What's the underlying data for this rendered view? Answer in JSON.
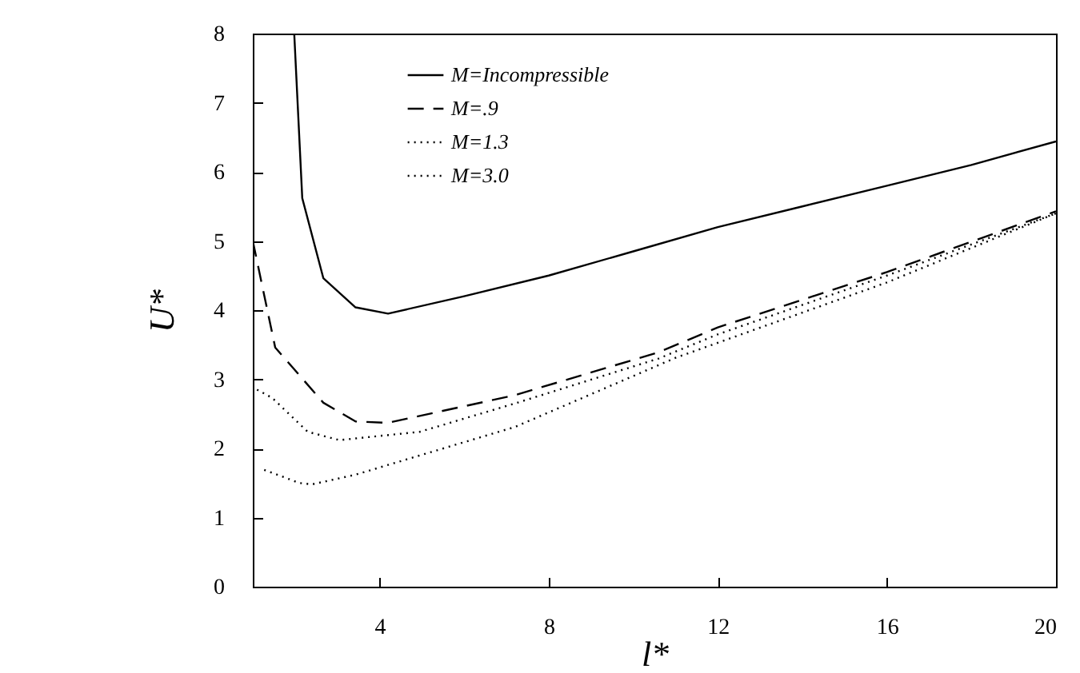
{
  "chart_data": {
    "type": "line",
    "xlabel": "l*",
    "ylabel": "U*",
    "xlim": [
      1,
      20
    ],
    "ylim": [
      0,
      8
    ],
    "xticks": [
      4,
      8,
      12,
      16,
      20
    ],
    "yticks": [
      0,
      1,
      2,
      3,
      4,
      5,
      6,
      7,
      8
    ],
    "grid": false,
    "legend": "top left",
    "marker": "none",
    "series": [
      {
        "name": "M=Incompressible",
        "color": "#000000",
        "line_style": "solid",
        "x": [
          1.98,
          2.17,
          2.67,
          3.43,
          4.2,
          6,
          8,
          10,
          12,
          14,
          16,
          18,
          20
        ],
        "values": [
          8,
          5.62,
          4.46,
          4.04,
          3.95,
          4.2,
          4.5,
          4.85,
          5.2,
          5.5,
          5.8,
          6.1,
          6.44
        ]
      },
      {
        "name": "M=.9",
        "color": "#000000",
        "line_style": "dashed",
        "x": [
          1,
          1.53,
          2.67,
          3.43,
          4.2,
          7.2,
          10.6,
          12,
          16,
          20
        ],
        "values": [
          5,
          3.46,
          2.66,
          2.39,
          2.37,
          2.77,
          3.39,
          3.75,
          4.55,
          5.43
        ]
      },
      {
        "name": "M=1.3",
        "color": "#000000",
        "line_style": "dotted",
        "x": [
          1.1,
          1.46,
          2.3,
          3.05,
          4.95,
          7.2,
          10.6,
          12,
          16,
          20
        ],
        "values": [
          2.85,
          2.73,
          2.24,
          2.12,
          2.24,
          2.65,
          3.3,
          3.65,
          4.5,
          5.4
        ]
      },
      {
        "name": "M=3.0",
        "color": "#000000",
        "line_style": "dotted",
        "x": [
          1.27,
          2.1,
          2.4,
          3.43,
          7.2,
          11,
          16,
          20
        ],
        "values": [
          1.69,
          1.5,
          1.48,
          1.62,
          2.31,
          3.31,
          4.4,
          5.4
        ]
      }
    ]
  }
}
